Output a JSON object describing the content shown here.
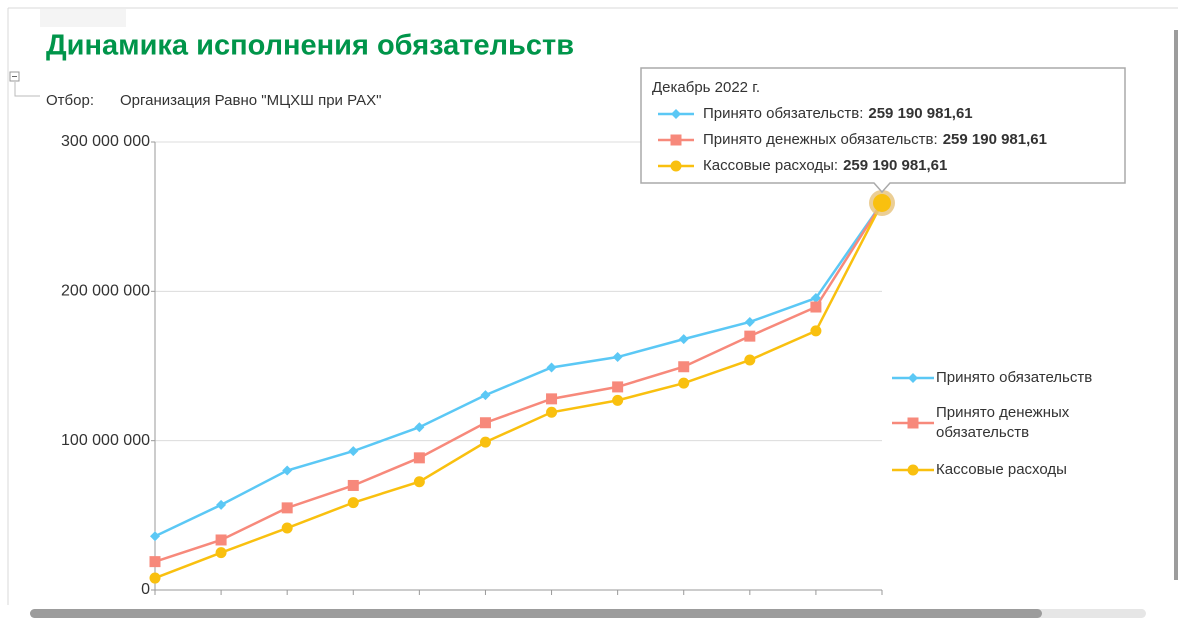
{
  "chart_data": {
    "type": "line",
    "title": "Динамика исполнения обязательств",
    "filter": {
      "label": "Отбор:",
      "text": "Организация Равно \"МЦХШ при РАХ\""
    },
    "categories": [
      null,
      null,
      null,
      null,
      null,
      null,
      null,
      null,
      null,
      null,
      null,
      null
    ],
    "series": [
      {
        "name": "Принято обязательств",
        "color": "#5bc8f5",
        "marker": "diamond",
        "values": [
          36000000,
          57000000,
          80000000,
          93000000,
          109000000,
          130500000,
          149000000,
          156000000,
          168000000,
          179500000,
          195500000,
          259190981.61
        ],
        "value_labels": [
          null,
          null,
          null,
          null,
          null,
          null,
          null,
          null,
          null,
          null,
          null,
          "259 190 981,61"
        ]
      },
      {
        "name": "Принято денежных обязательств",
        "color": "#f7897b",
        "marker": "square",
        "values": [
          19000000,
          33500000,
          55000000,
          70000000,
          88500000,
          112000000,
          128000000,
          136000000,
          149500000,
          170000000,
          189500000,
          259190981.61
        ],
        "value_labels": [
          null,
          null,
          null,
          null,
          null,
          null,
          null,
          null,
          null,
          null,
          null,
          "259 190 981,61"
        ]
      },
      {
        "name": "Кассовые расходы",
        "color": "#f9c00f",
        "marker": "circle",
        "values": [
          8000000,
          25000000,
          41500000,
          58500000,
          72500000,
          99000000,
          119000000,
          127000000,
          138500000,
          154000000,
          173500000,
          259190981.61
        ],
        "value_labels": [
          null,
          null,
          null,
          null,
          null,
          null,
          null,
          null,
          null,
          null,
          null,
          "259 190 981,61"
        ]
      }
    ],
    "ylim": [
      0,
      300000000
    ],
    "yticks": [
      0,
      {
        "value": 100000000,
        "label": "100 000 000"
      },
      {
        "value": 200000000,
        "label": "200 000 000"
      },
      {
        "value": 300000000,
        "label": "300 000 000"
      }
    ],
    "grid": true,
    "legend": "right",
    "tooltip": {
      "title": "Декабрь 2022 г.",
      "separator": ":",
      "index": 11
    }
  }
}
